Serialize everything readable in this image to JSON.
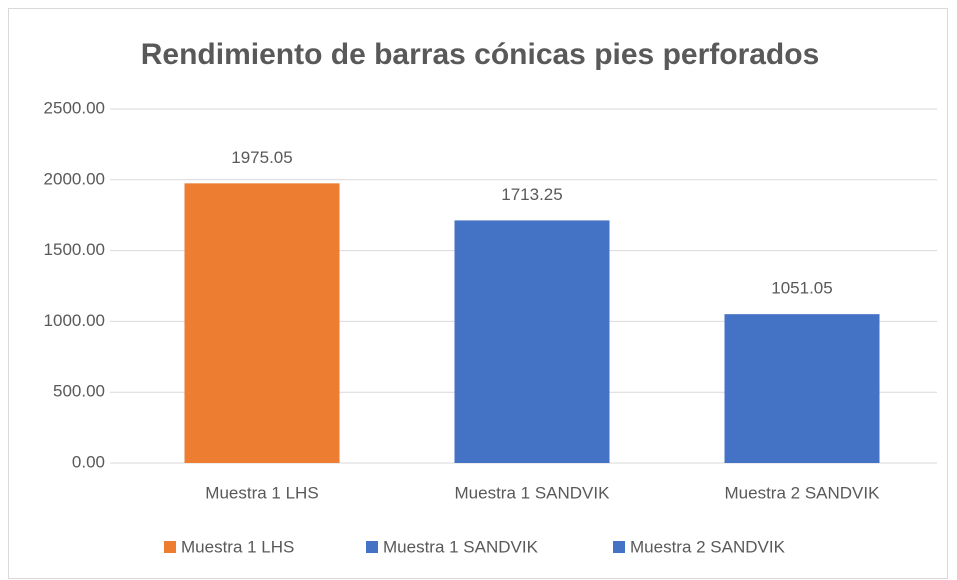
{
  "chart_data": {
    "type": "bar",
    "title": "Rendimiento de barras cónicas pies perforados",
    "categories": [
      "Muestra 1 LHS",
      "Muestra 1 SANDVIK",
      "Muestra 2 SANDVIK"
    ],
    "values": [
      1975.05,
      1713.25,
      1051.05
    ],
    "colors": [
      "#ed7d31",
      "#4472c4",
      "#4472c4"
    ],
    "ylim": [
      0,
      2500
    ],
    "yticks": [
      {
        "value": 0,
        "label": "0.00"
      },
      {
        "value": 500,
        "label": "500.00"
      },
      {
        "value": 1000,
        "label": "1000.00"
      },
      {
        "value": 1500,
        "label": "1500.00"
      },
      {
        "value": 2000,
        "label": "2000.00"
      },
      {
        "value": 2500,
        "label": "2500.00"
      }
    ],
    "grid": true,
    "legend": "bottom"
  }
}
